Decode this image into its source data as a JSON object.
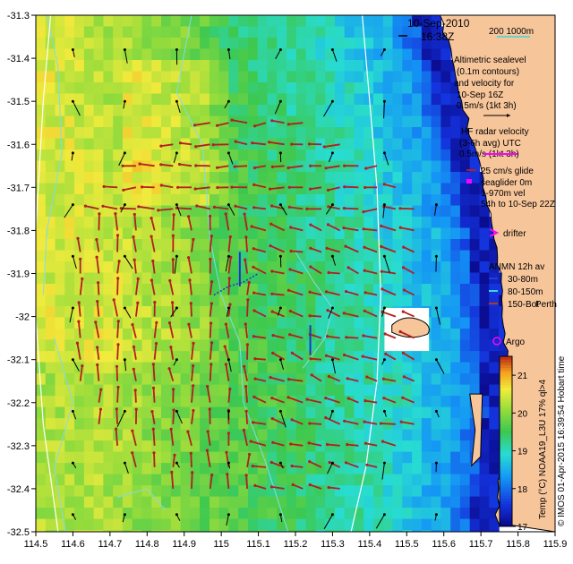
{
  "header": {
    "date": "10-Sep-2010",
    "time": "16:38Z",
    "scale_label": "200  1000m"
  },
  "legend": {
    "altimetry_lines": [
      "Altimetric sealevel",
      "(0.1m contours)",
      "and velocity for",
      "10-Sep 16Z"
    ],
    "altimetry_scale": "0.5m/s (1kt 3h)",
    "hf_lines": [
      "HF radar velocity",
      "(3-6h avg) UTC",
      "0.5m/s (1kt 3h)"
    ],
    "glider_lines": [
      "25 cm/s glide",
      "seaglider 0m",
      "1-970m vel",
      "54h to 10-Sep 22Z"
    ],
    "drifter": "drifter",
    "anmn_title": "ANMN 12h av",
    "anmn_items": [
      {
        "label": "30-80m",
        "color": "#1f3fd8"
      },
      {
        "label": "80-150m",
        "color": "#39d6e0"
      },
      {
        "label": "150-Bot",
        "color": "#b4361e"
      }
    ],
    "argo": "Argo",
    "place": "Perth"
  },
  "colorbar": {
    "label": "Temp (°C) NOAA19_L3U 17% ql>4",
    "min": 17,
    "max": 21.5,
    "ticks": [
      "17",
      "18",
      "19",
      "20",
      "21"
    ]
  },
  "credit": "© IMOS 01-Apr-2015 16:39:54 Hobart time",
  "axes": {
    "x_ticks": [
      "114.5",
      "114.6",
      "114.7",
      "114.8",
      "114.9",
      "115",
      "115.1",
      "115.2",
      "115.3",
      "115.4",
      "115.5",
      "115.6",
      "115.7",
      "115.8",
      "115.9"
    ],
    "y_ticks": [
      "-31.3",
      "-31.4",
      "-31.5",
      "-31.6",
      "-31.7",
      "-31.8",
      "-31.9",
      "-32",
      "-32.1",
      "-32.2",
      "-32.3",
      "-32.4",
      "-32.5"
    ],
    "lon_range": [
      114.5,
      115.9
    ],
    "lat_range": [
      -32.5,
      -31.3
    ]
  },
  "colors": {
    "land": "#f7c59a",
    "radar_arrow": "#b41e1e",
    "altimetry_arrow": "#000000",
    "isobath": "#ffffff",
    "contour": "#7fdcef",
    "argo": "#ff00ff",
    "drifter": "#ff00ff",
    "glider": "#2233cc"
  }
}
